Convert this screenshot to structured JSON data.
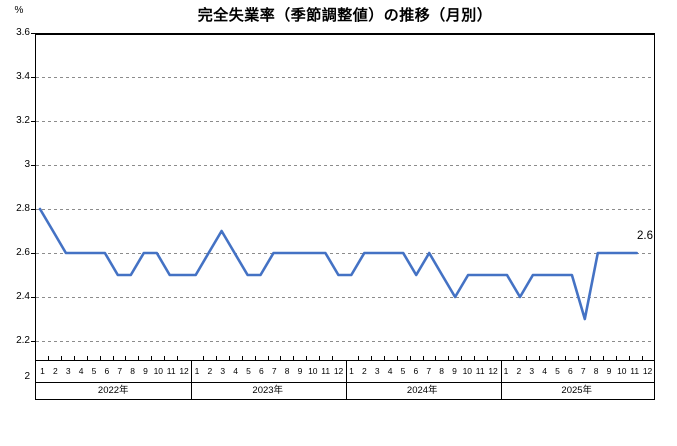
{
  "title": "完全失業率（季節調整値）の推移（月別）",
  "y_axis": {
    "unit": "%",
    "tick_labels": [
      "3.6",
      "3.4",
      "3.2",
      "3",
      "2.8",
      "2.6",
      "2.4",
      "2.2",
      "2"
    ],
    "min": 2,
    "max": 3.6,
    "step": 0.2
  },
  "x_axis": {
    "month_labels": [
      "1",
      "2",
      "3",
      "4",
      "5",
      "6",
      "7",
      "8",
      "9",
      "10",
      "11",
      "12"
    ],
    "year_labels": [
      "2022年",
      "2023年",
      "2024年",
      "2025年"
    ]
  },
  "end_label": "2.6",
  "colors": {
    "line": "#4472C4",
    "grid": "#8c8c8c",
    "axis": "#000000",
    "background": "#ffffff"
  },
  "chart_data": {
    "type": "line",
    "title": "完全失業率（季節調整値）の推移（月別）",
    "xlabel": "",
    "ylabel": "%",
    "ylim": [
      2,
      3.6
    ],
    "ytick_step": 0.2,
    "grid": "horizontal-dashed",
    "legend": "none",
    "last_point_label": "2.6",
    "series": [
      {
        "name": "2022年",
        "months": [
          1,
          2,
          3,
          4,
          5,
          6,
          7,
          8,
          9,
          10,
          11,
          12
        ],
        "values": [
          2.8,
          2.7,
          2.6,
          2.6,
          2.6,
          2.6,
          2.5,
          2.5,
          2.6,
          2.6,
          2.5,
          2.5
        ]
      },
      {
        "name": "2023年",
        "months": [
          1,
          2,
          3,
          4,
          5,
          6,
          7,
          8,
          9,
          10,
          11,
          12
        ],
        "values": [
          2.5,
          2.6,
          2.7,
          2.6,
          2.5,
          2.5,
          2.6,
          2.6,
          2.6,
          2.6,
          2.6,
          2.5
        ]
      },
      {
        "name": "2024年",
        "months": [
          1,
          2,
          3,
          4,
          5,
          6,
          7,
          8,
          9,
          10,
          11,
          12
        ],
        "values": [
          2.5,
          2.6,
          2.6,
          2.6,
          2.6,
          2.5,
          2.6,
          2.5,
          2.4,
          2.5,
          2.5,
          2.5
        ]
      },
      {
        "name": "2025年",
        "months": [
          1,
          2,
          3,
          4,
          5,
          6,
          7,
          8,
          9,
          10,
          11
        ],
        "values": [
          2.5,
          2.4,
          2.5,
          2.5,
          2.5,
          2.5,
          2.3,
          2.6,
          2.6,
          2.6,
          2.6
        ]
      }
    ]
  }
}
